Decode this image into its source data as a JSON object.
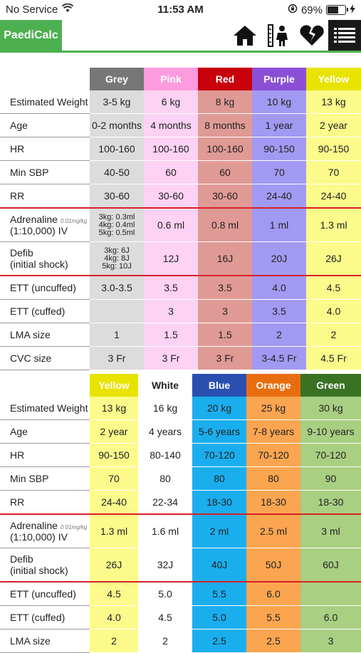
{
  "status_bar": {
    "carrier": "No Service",
    "time": "11:53 AM",
    "battery": "69%",
    "battery_level": 0.69
  },
  "nav": {
    "brand": "PaediCalc",
    "icons": [
      "home-icon",
      "child-growth-icon",
      "broken-heart-icon",
      "menu-icon"
    ]
  },
  "table1": {
    "columns": [
      {
        "name": "Grey",
        "header_bg": "#777777",
        "header_fg": "#ffffff",
        "cell_bg": "#dcdcdc"
      },
      {
        "name": "Pink",
        "header_bg": "#fc9bde",
        "header_fg": "#ffffff",
        "cell_bg": "#fdd2f4"
      },
      {
        "name": "Red",
        "header_bg": "#c8000c",
        "header_fg": "#ffffff",
        "cell_bg": "#e09a95"
      },
      {
        "name": "Purple",
        "header_bg": "#8b4fd7",
        "header_fg": "#ffffff",
        "cell_bg": "#a29af2"
      },
      {
        "name": "Yellow",
        "header_bg": "#e8e300",
        "header_fg": "#ffffff",
        "cell_bg": "#fbfa8b"
      }
    ],
    "rows": [
      {
        "label": "Estimated Weight",
        "cells": [
          "3-5 kg",
          "6 kg",
          "8 kg",
          "10 kg",
          "13 kg"
        ]
      },
      {
        "label": "Age",
        "cells": [
          "0-2 months",
          "4 months",
          "8 months",
          "1 year",
          "2 year"
        ]
      },
      {
        "label": "HR",
        "cells": [
          "100-160",
          "100-160",
          "100-160",
          "90-150",
          "90-150"
        ]
      },
      {
        "label": "Min SBP",
        "cells": [
          "40-50",
          "60",
          "60",
          "70",
          "70"
        ]
      },
      {
        "label": "RR",
        "cells": [
          "30-60",
          "30-60",
          "30-60",
          "24-40",
          "24-40"
        ],
        "red": true
      },
      {
        "label": "Adrenaline",
        "label_unit": "0.01mg/kg",
        "label2": "(1:10,000) IV",
        "cells": [
          [
            "3kg: 0.3ml",
            "4kg: 0.4ml",
            "5kg: 0.5ml"
          ],
          "0.6 ml",
          "0.8 ml",
          "1 ml",
          "1.3 ml"
        ]
      },
      {
        "label": "Defib",
        "label2": "(initial shock)",
        "cells": [
          [
            "3kg: 6J",
            "4kg: 8J",
            "5kg: 10J"
          ],
          "12J",
          "16J",
          "20J",
          "26J"
        ],
        "red": true
      },
      {
        "label": "ETT (uncuffed)",
        "cells": [
          "3.0-3.5",
          "3.5",
          "3.5",
          "4.0",
          "4.5"
        ]
      },
      {
        "label": "ETT (cuffed)",
        "cells": [
          "",
          "3",
          "3",
          "3.5",
          "4.0"
        ]
      },
      {
        "label": "LMA size",
        "cells": [
          "1",
          "1.5",
          "1.5",
          "2",
          "2"
        ]
      },
      {
        "label": "CVC size",
        "cells": [
          "3 Fr",
          "3 Fr",
          "3 Fr",
          "3-4.5 Fr",
          "4.5 Fr"
        ]
      }
    ]
  },
  "table2": {
    "columns": [
      {
        "name": "Yellow",
        "header_bg": "#e8e300",
        "header_fg": "#ffffff",
        "cell_bg": "#fbfa8b"
      },
      {
        "name": "White",
        "header_bg": "#ffffff",
        "header_fg": "#222222",
        "cell_bg": "#ffffff"
      },
      {
        "name": "Blue",
        "header_bg": "#2a4fb0",
        "header_fg": "#ffffff",
        "cell_bg": "#1aaeee"
      },
      {
        "name": "Orange",
        "header_bg": "#e86d10",
        "header_fg": "#ffffff",
        "cell_bg": "#fba550"
      },
      {
        "name": "Green",
        "header_bg": "#3a7224",
        "header_fg": "#ffffff",
        "cell_bg": "#a8cf82"
      }
    ],
    "rows": [
      {
        "label": "Estimated Weight",
        "cells": [
          "13 kg",
          "16 kg",
          "20 kg",
          "25 kg",
          "30 kg"
        ]
      },
      {
        "label": "Age",
        "cells": [
          "2 year",
          "4 years",
          "5-6 years",
          "7-8 years",
          "9-10 years"
        ]
      },
      {
        "label": "HR",
        "cells": [
          "90-150",
          "80-140",
          "70-120",
          "70-120",
          "70-120"
        ]
      },
      {
        "label": "Min SBP",
        "cells": [
          "70",
          "80",
          "80",
          "80",
          "90"
        ]
      },
      {
        "label": "RR",
        "cells": [
          "24-40",
          "22-34",
          "18-30",
          "18-30",
          "18-30"
        ],
        "red": true
      },
      {
        "label": "Adrenaline",
        "label_unit": "0.01mg/kg",
        "label2": "(1:10,000) IV",
        "cells": [
          "1.3 ml",
          "1.6 ml",
          "2 ml",
          "2.5 ml",
          "3 ml"
        ]
      },
      {
        "label": "Defib",
        "label2": "(initial shock)",
        "cells": [
          "26J",
          "32J",
          "40J",
          "50J",
          "60J"
        ],
        "red": true
      },
      {
        "label": "ETT (uncuffed)",
        "cells": [
          "4.5",
          "5.0",
          "5.5",
          "6.0",
          ""
        ]
      },
      {
        "label": "ETT (cuffed)",
        "cells": [
          "4.0",
          "4.5",
          "5.0",
          "5.5",
          "6.0"
        ]
      },
      {
        "label": "LMA size",
        "cells": [
          "2",
          "2",
          "2.5",
          "2.5",
          "3"
        ]
      }
    ]
  }
}
